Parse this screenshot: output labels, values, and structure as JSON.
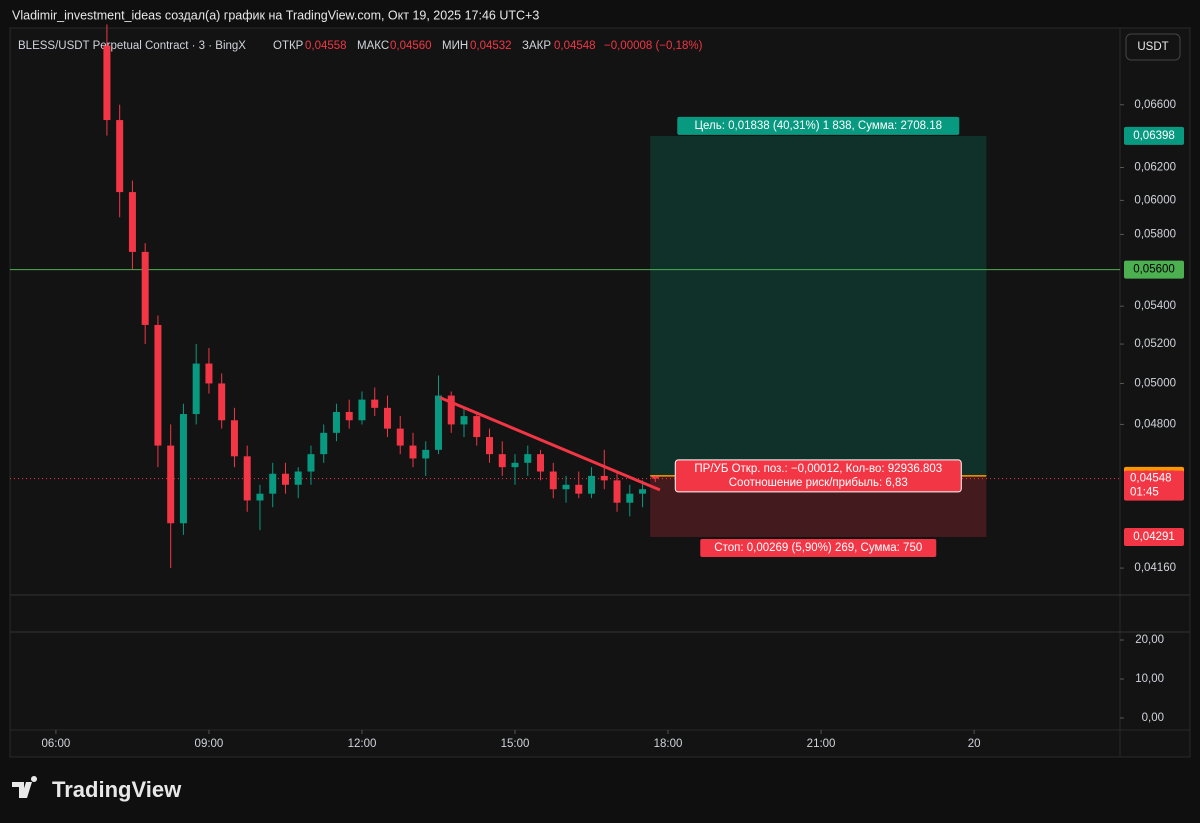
{
  "header": {
    "title": "Vladimir_investment_ideas создал(а) график на TradingView.com, Окт 19, 2025 17:46 UTC+3"
  },
  "legend": {
    "symbol": "BLESS/USDT Perpetual Contract · 3 · BingX",
    "open_label": "ОТКР",
    "open": "0,04558",
    "high_label": "МАКС",
    "high": "0,04560",
    "low_label": "МИН",
    "low": "0,04532",
    "close_label": "ЗАКР",
    "close": "0,04548",
    "change": "−0,00008 (−0,18%)"
  },
  "currency": "USDT",
  "footer": {
    "brand": "TradingView"
  },
  "chart_data": {
    "type": "candlestick",
    "up_color": "#089981",
    "down_color": "#f23645",
    "x": [
      7.0,
      7.25,
      7.5,
      7.75,
      8.0,
      8.25,
      8.5,
      8.75,
      9.0,
      9.25,
      9.5,
      9.75,
      10.0,
      10.25,
      10.5,
      10.75,
      11.0,
      11.25,
      11.5,
      11.75,
      12.0,
      12.25,
      12.5,
      12.75,
      13.0,
      13.25,
      13.5,
      13.75,
      14.0,
      14.25,
      14.5,
      14.75,
      15.0,
      15.25,
      15.5,
      15.75,
      16.0,
      16.25,
      16.5,
      16.75,
      17.0,
      17.25,
      17.5,
      17.75
    ],
    "open": [
      0.07,
      0.065,
      0.0605,
      0.057,
      0.053,
      0.047,
      0.0435,
      0.0485,
      0.051,
      0.05,
      0.0482,
      0.0465,
      0.0445,
      0.0448,
      0.0457,
      0.0452,
      0.0458,
      0.0466,
      0.0476,
      0.0486,
      0.0482,
      0.0492,
      0.0488,
      0.0478,
      0.047,
      0.0464,
      0.0468,
      0.0494,
      0.048,
      0.0484,
      0.0474,
      0.0466,
      0.046,
      0.0462,
      0.0466,
      0.0458,
      0.045,
      0.0452,
      0.0448,
      0.0456,
      0.0454,
      0.0444,
      0.0448,
      0.04558
    ],
    "high": [
      0.0715,
      0.066,
      0.0612,
      0.0575,
      0.0535,
      0.048,
      0.049,
      0.052,
      0.0518,
      0.0505,
      0.0488,
      0.047,
      0.0452,
      0.0462,
      0.0462,
      0.046,
      0.047,
      0.048,
      0.049,
      0.0492,
      0.0496,
      0.0498,
      0.0494,
      0.0484,
      0.0476,
      0.0472,
      0.0504,
      0.0496,
      0.0488,
      0.0486,
      0.0478,
      0.0472,
      0.0466,
      0.047,
      0.0468,
      0.0462,
      0.0456,
      0.0458,
      0.046,
      0.0468,
      0.0458,
      0.0452,
      0.0454,
      0.0456
    ],
    "low": [
      0.064,
      0.059,
      0.056,
      0.052,
      0.046,
      0.0416,
      0.043,
      0.048,
      0.0495,
      0.0478,
      0.046,
      0.044,
      0.0432,
      0.0442,
      0.0448,
      0.0446,
      0.0452,
      0.0462,
      0.0472,
      0.0478,
      0.048,
      0.0484,
      0.0474,
      0.0466,
      0.046,
      0.0456,
      0.0466,
      0.0476,
      0.0474,
      0.047,
      0.0462,
      0.0456,
      0.0452,
      0.0456,
      0.0454,
      0.0446,
      0.0444,
      0.0446,
      0.0446,
      0.045,
      0.044,
      0.0438,
      0.0442,
      0.04532
    ],
    "close": [
      0.065,
      0.0605,
      0.057,
      0.053,
      0.047,
      0.0435,
      0.0485,
      0.051,
      0.05,
      0.0482,
      0.0465,
      0.0445,
      0.0448,
      0.0457,
      0.0452,
      0.0458,
      0.0466,
      0.0476,
      0.0486,
      0.0482,
      0.0492,
      0.0488,
      0.0478,
      0.047,
      0.0464,
      0.0468,
      0.0494,
      0.048,
      0.0484,
      0.0474,
      0.0466,
      0.046,
      0.0462,
      0.0466,
      0.0458,
      0.045,
      0.0452,
      0.0448,
      0.0456,
      0.0454,
      0.0444,
      0.0448,
      0.045,
      0.04548
    ],
    "xlim": [
      5.1,
      26.86
    ],
    "xticks": [
      {
        "value": 6,
        "label": "06:00"
      },
      {
        "value": 9,
        "label": "09:00"
      },
      {
        "value": 12,
        "label": "12:00"
      },
      {
        "value": 15,
        "label": "15:00"
      },
      {
        "value": 18,
        "label": "18:00"
      },
      {
        "value": 21,
        "label": "21:00"
      },
      {
        "value": 24,
        "label": "20"
      }
    ],
    "ylim": [
      0.0405,
      0.0711
    ],
    "log_scale": true,
    "grid": false,
    "yticks": [
      {
        "value": 0.066,
        "label": "0,06600"
      },
      {
        "value": 0.062,
        "label": "0,06200"
      },
      {
        "value": 0.06,
        "label": "0,06000"
      },
      {
        "value": 0.058,
        "label": "0,05800"
      },
      {
        "value": 0.054,
        "label": "0,05400"
      },
      {
        "value": 0.052,
        "label": "0,05200"
      },
      {
        "value": 0.05,
        "label": "0,05000"
      },
      {
        "value": 0.048,
        "label": "0,04800"
      },
      {
        "value": 0.0416,
        "label": "0,04160"
      }
    ],
    "hlines": [
      {
        "value": 0.056,
        "label": "0,05600",
        "color": "#4caf50"
      }
    ],
    "trendline": {
      "x": [
        13.53,
        17.84
      ],
      "y": [
        0.0493,
        0.04497
      ],
      "color": "#f23645"
    },
    "last_price": {
      "value": 0.04548,
      "label": "0,04548",
      "countdown": "01:45",
      "color": "#f23645"
    },
    "position": {
      "x": [
        17.65,
        24.24
      ],
      "entry": {
        "value": 0.0456,
        "label": "0,04560"
      },
      "target": {
        "value": 0.06398,
        "label": "0,06398"
      },
      "stop": {
        "value": 0.04291,
        "label": "0,04291"
      },
      "target_text": "Цель: 0,01838 (40,31%) 1 838, Сумма: 2708.18",
      "pnl_text": "ПР/УБ Откр. поз.: −0,00012, Кол-во: 92936.803",
      "ratio_text": "Соотношение риск/прибыль: 6,83",
      "stop_text": "Стоп: 0,00269 (5,90%) 269, Сумма: 750"
    },
    "indicator": {
      "ylim": [
        -3.08,
        22.05
      ],
      "yticks": [
        {
          "value": 20,
          "label": "20,00"
        },
        {
          "value": 10,
          "label": "10,00"
        },
        {
          "value": 0,
          "label": "0,00"
        }
      ]
    }
  }
}
